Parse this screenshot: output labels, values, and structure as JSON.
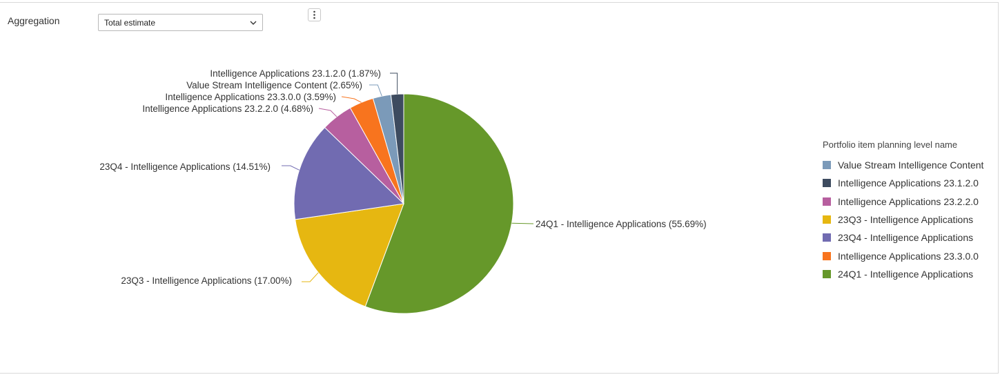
{
  "aggregation": {
    "label": "Aggregation",
    "selected": "Total estimate"
  },
  "toolbar": {
    "menu_icon": "more-vertical-icon"
  },
  "chart_data": {
    "type": "pie",
    "slices": [
      {
        "name": "24Q1 - Intelligence Applications",
        "value": 55.69,
        "color": "#66982a",
        "label": "24Q1 - Intelligence Applications (55.69%)"
      },
      {
        "name": "23Q3 - Intelligence Applications",
        "value": 17.0,
        "color": "#e6b711",
        "label": "23Q3 - Intelligence Applications (17.00%)"
      },
      {
        "name": "23Q4 - Intelligence Applications",
        "value": 14.51,
        "color": "#716bb1",
        "label": "23Q4 - Intelligence Applications (14.51%)"
      },
      {
        "name": "Intelligence Applications 23.2.2.0",
        "value": 4.68,
        "color": "#b75f9f",
        "label": "Intelligence Applications 23.2.2.0 (4.68%)"
      },
      {
        "name": "Intelligence Applications 23.3.0.0",
        "value": 3.59,
        "color": "#f8741e",
        "label": "Intelligence Applications 23.3.0.0 (3.59%)"
      },
      {
        "name": "Value Stream Intelligence Content",
        "value": 2.65,
        "color": "#7b9ab9",
        "label": "Value Stream Intelligence Content (2.65%)"
      },
      {
        "name": "Intelligence Applications 23.1.2.0",
        "value": 1.87,
        "color": "#3d4b5f",
        "label": "Intelligence Applications 23.1.2.0 (1.87%)"
      }
    ],
    "legend": {
      "title": "Portfolio item planning level name",
      "position": "right",
      "items": [
        {
          "name": "Value Stream Intelligence Content",
          "color": "#7b9ab9"
        },
        {
          "name": "Intelligence Applications 23.1.2.0",
          "color": "#3d4b5f"
        },
        {
          "name": "Intelligence Applications 23.2.2.0",
          "color": "#b75f9f"
        },
        {
          "name": "23Q3 - Intelligence Applications",
          "color": "#e6b711"
        },
        {
          "name": "23Q4 - Intelligence Applications",
          "color": "#716bb1"
        },
        {
          "name": "Intelligence Applications 23.3.0.0",
          "color": "#f8741e"
        },
        {
          "name": "24Q1 - Intelligence Applications",
          "color": "#66982a"
        }
      ]
    }
  }
}
